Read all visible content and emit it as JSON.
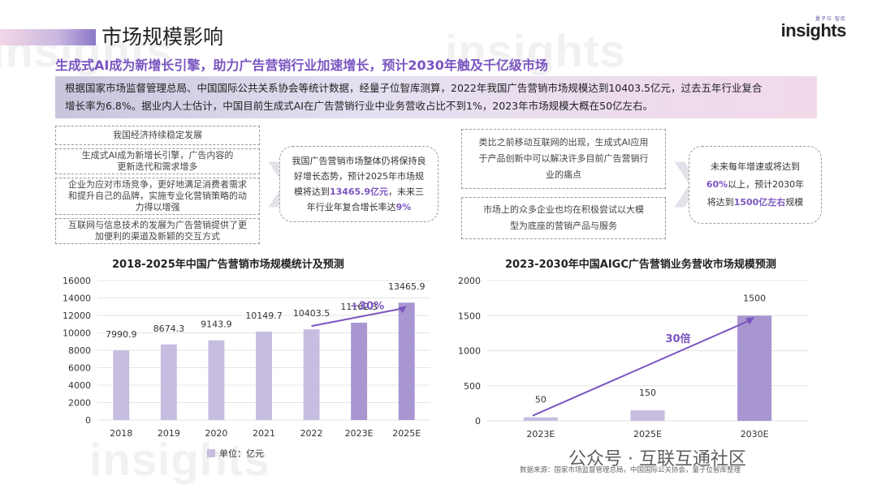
{
  "watermark": "insights",
  "page_title": "市场规模影响",
  "logo": {
    "sub": "量子位 智库",
    "name": "insights"
  },
  "subtitle": "生成式AI成为新增长引擎，助力广告营销行业加速增长，预计2030年触及千亿级市场",
  "summary": {
    "line1": "根据国家市场监督管理总局、中国国际公共关系协会等统计数据，经量子位智库测算，2022年我国广告营销市场规模达到10403.5亿元，过去五年行业复合",
    "line2": "增长率为6.8%。据业内人士估计，中国目前生成式AI在广告营销行业中业务营收占比不到1%，2023年市场规模大概在50亿左右。"
  },
  "left_factors": [
    "我国经济持续稳定发展",
    "生成式AI成为新增长引擎，广告内容的更新迭代和需求增多",
    "企业为应对市场竞争，更好地满足消费者需求和提升自己的品牌，实施专业化营销策略的动力得以增强",
    "互联网与信息技术的发展为广告营销提供了更加便利的渠道及新颖的交互方式"
  ],
  "left_conclusion": {
    "pre": "我国广告营销市场整体仍将保持良好增长态势，预计2025年市场规模将达到",
    "hl1": "13465.9亿元",
    "mid": "，未来三年行业年复合增长率达",
    "hl2": "9%"
  },
  "right_factors": [
    "类比之前移动互联网的出现，生成式AI应用于产品创新中可以解决许多目前广告营销行业的痛点",
    "市场上的众多企业也均在积极尝试以大模型为底座的营销产品与服务"
  ],
  "right_conclusion": {
    "pre": "未来每年增速或将达到",
    "hl1": "60%",
    "mid": "以上，预计2030年将达到",
    "hl2": "1500亿左右",
    "post": "规模"
  },
  "unit_label": "单位：亿元",
  "source": "数据来源：国家市场监督管理总局，中国国际公关协会，量子位智库整理",
  "wechat": "公众号 · 互联互通社区",
  "colors": {
    "bar": "#c7bde0",
    "bar_dark": "#a796d0",
    "accent": "#7a55c0",
    "line": "#7a55c0"
  },
  "chart_data": [
    {
      "type": "bar",
      "title": "2018-2025年中国广告营销市场规模统计及预测",
      "categories": [
        "2018",
        "2019",
        "2020",
        "2021",
        "2022",
        "2023E",
        "2025E"
      ],
      "values": [
        7990.9,
        8674.3,
        9143.9,
        10149.7,
        10403.5,
        11162.3,
        13465.9
      ],
      "value_labels": [
        "7990.9",
        "8674.3",
        "9143.9",
        "10149.7",
        "10403.5",
        "11162.3",
        "13465.9"
      ],
      "ylim": [
        0,
        16000
      ],
      "yticks": [
        0,
        2000,
        4000,
        6000,
        8000,
        10000,
        12000,
        14000,
        16000
      ],
      "legend": "单位：亿元",
      "annotation": "+30%"
    },
    {
      "type": "bar",
      "title": "2023-2030年中国AIGC广告营销业务营收市场规模预测",
      "categories": [
        "2023E",
        "2025E",
        "2030E"
      ],
      "values": [
        50,
        150,
        1500
      ],
      "value_labels": [
        "50",
        "150",
        "1500"
      ],
      "ylim": [
        0,
        2000
      ],
      "yticks": [
        0,
        500,
        1000,
        1500,
        2000
      ],
      "annotation": "30倍"
    }
  ]
}
